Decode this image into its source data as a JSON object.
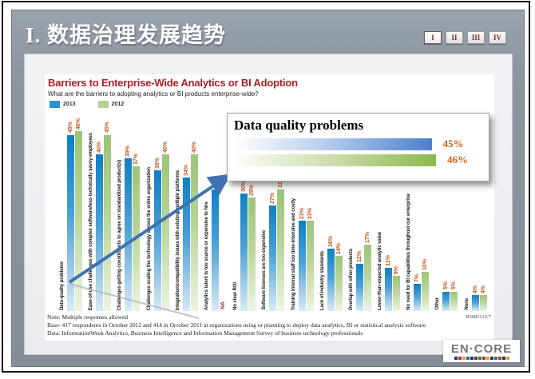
{
  "page": {
    "slide_title": "I. 数据治理发展趋势",
    "nav_buttons": [
      {
        "label": "I",
        "active": true
      },
      {
        "label": "II",
        "active": false
      },
      {
        "label": "III",
        "active": false
      },
      {
        "label": "IV",
        "active": false
      }
    ]
  },
  "chart": {
    "title": "Barriers to Enterprise-Wide Analytics or BI Adoption",
    "subtitle": "What are the barriers to adopting analytics or BI products enterprise-wide?",
    "legend": [
      {
        "label": "2013",
        "color": "#2a93d1"
      },
      {
        "label": "2012",
        "color": "#b3d295"
      }
    ],
    "notes": [
      "Note: Multiple responses allowed",
      "Base: 417 respondents in October 2012 and 414 in October 2011 at organizations using or planning to deploy data analytics, BI or statistical analysis software",
      "Data: InformationWeek Analytics, Business Intelligence and Information Management Survey of business technology professionals"
    ],
    "report_code": "R5081112/7"
  },
  "chart_data": {
    "type": "bar",
    "title": "Barriers to Enterprise-Wide Analytics or BI Adoption",
    "subtitle": "What are the barriers to adopting analytics or BI products enterprise-wide?",
    "categories": [
      "Data-quality problems",
      "Ease-of-use challenges with complex software/less technically savvy employees",
      "Challenges getting constituents to agree on standardized product(s)",
      "Challenges scaling the technology across the entire organization",
      "Integration/compatibility issues with existing/multiple platforms",
      "Analytics talent is too scarce or expensive to hire",
      "No clear ROI",
      "Software licenses are too expensive",
      "Training internal staff too time-intensive and costly",
      "Lack of industry standards",
      "Overlap with other products",
      "Lower-than-expected analytic value",
      "No need for BI capabilities throughout our enterprise",
      "Other",
      "None"
    ],
    "series": [
      {
        "name": "2013",
        "color": "#1e8bcd",
        "values": [
          45,
          40,
          39,
          36,
          34,
          31,
          30,
          27,
          23,
          16,
          12,
          11,
          7,
          5,
          4
        ],
        "labels": [
          "45%",
          "40%",
          "39%",
          "36%",
          "34%",
          "31%",
          "30%",
          "27%",
          "23%",
          "16%",
          "12%",
          "11%",
          "7%",
          "5%",
          "4%"
        ]
      },
      {
        "name": "2012",
        "color": "#a8cd85",
        "values": [
          46,
          45,
          37,
          40,
          40,
          null,
          29,
          31,
          23,
          14,
          17,
          9,
          10,
          5,
          4
        ],
        "labels": [
          "46%",
          "45%",
          "37%",
          "40%",
          "40%",
          "NA",
          "29%",
          "31%",
          "23%",
          "14%",
          "17%",
          "9%",
          "10%",
          "5%",
          "4%"
        ]
      }
    ],
    "ylim": [
      0,
      50
    ],
    "grid": false,
    "legend_position": "top-left",
    "value_label_color": "#c4551b",
    "na_color": "#b03a2e"
  },
  "callout": {
    "title": "Data quality problems",
    "rows": [
      {
        "series": "2013",
        "value": 45,
        "label": "45%"
      },
      {
        "series": "2012",
        "value": 46,
        "label": "46%"
      }
    ]
  },
  "logo": {
    "text": "EN·CORE",
    "strip_colors": [
      "#24356b",
      "#b03a2e",
      "#e69c3a",
      "#2e6e8e",
      "#24356b",
      "#7a2d2d",
      "#3a7d44",
      "#b03a2e",
      "#e69c3a",
      "#24356b",
      "#2e6e8e",
      "#b03a2e",
      "#24356b",
      "#e69c3a"
    ]
  }
}
